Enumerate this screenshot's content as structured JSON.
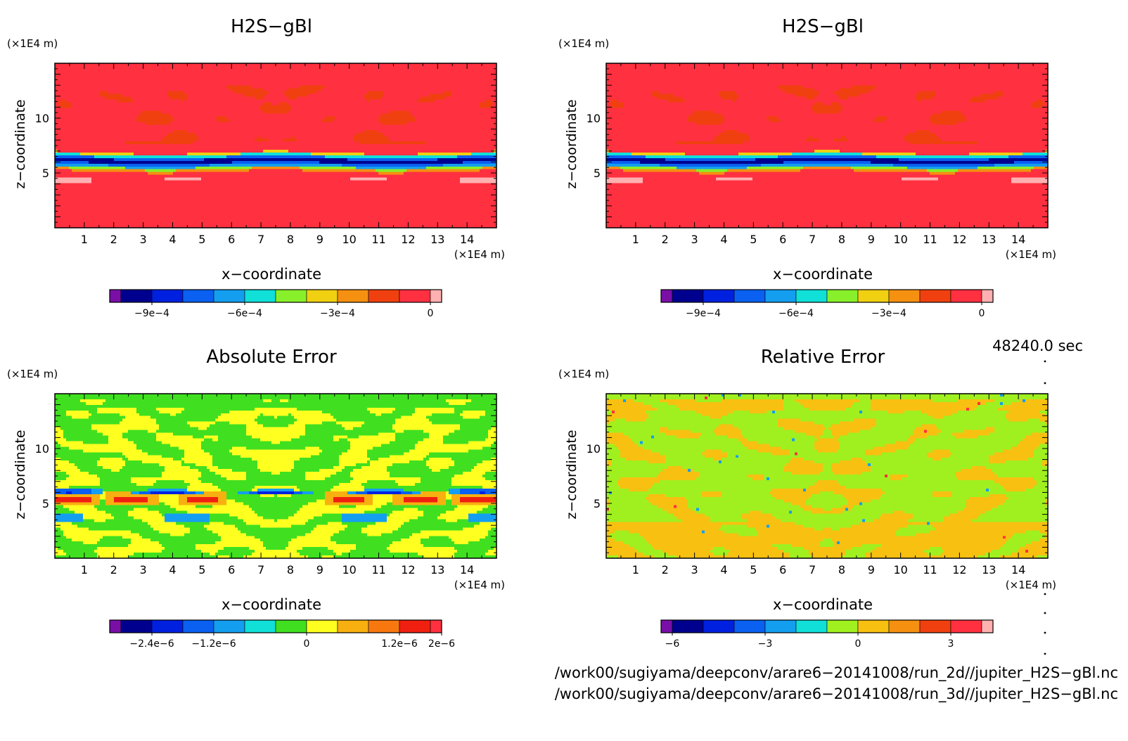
{
  "panels": [
    {
      "id": "h2s-gbl-2d",
      "title": "H2S−gBl",
      "xlabel": "x−coordinate",
      "ylabel": "z−coordinate",
      "x_unit": "(×1E4 m)",
      "y_unit": "(×1E4 m)",
      "x_ticks": [
        1,
        2,
        3,
        4,
        5,
        6,
        7,
        8,
        9,
        10,
        11,
        12,
        13,
        14
      ],
      "y_ticks": [
        5,
        10
      ],
      "field": "h2s",
      "colorbar": {
        "colors": [
          "#7a0fa8",
          "#00008f",
          "#0020e0",
          "#0a60f0",
          "#149ef0",
          "#10e0d8",
          "#88f02a",
          "#f0d010",
          "#f59010",
          "#f04010",
          "#ff3040",
          "#ffb0b0"
        ],
        "tick_labels": [
          "−9e−4",
          "−6e−4",
          "−3e−4",
          "0"
        ],
        "tick_indices": [
          1,
          4,
          7,
          10
        ]
      }
    },
    {
      "id": "h2s-gbl-3d",
      "title": "H2S−gBl",
      "xlabel": "x−coordinate",
      "ylabel": "z−coordinate",
      "x_unit": "(×1E4 m)",
      "y_unit": "(×1E4 m)",
      "x_ticks": [
        1,
        2,
        3,
        4,
        5,
        6,
        7,
        8,
        9,
        10,
        11,
        12,
        13,
        14
      ],
      "y_ticks": [
        5,
        10
      ],
      "field": "h2s",
      "colorbar": {
        "colors": [
          "#7a0fa8",
          "#00008f",
          "#0020e0",
          "#0a60f0",
          "#149ef0",
          "#10e0d8",
          "#88f02a",
          "#f0d010",
          "#f59010",
          "#f04010",
          "#ff3040",
          "#ffb0b0"
        ],
        "tick_labels": [
          "−9e−4",
          "−6e−4",
          "−3e−4",
          "0"
        ],
        "tick_indices": [
          1,
          4,
          7,
          10
        ]
      }
    },
    {
      "id": "absolute-error",
      "title": "Absolute Error",
      "xlabel": "x−coordinate",
      "ylabel": "z−coordinate",
      "x_unit": "(×1E4 m)",
      "y_unit": "(×1E4 m)",
      "x_ticks": [
        1,
        2,
        3,
        4,
        5,
        6,
        7,
        8,
        9,
        10,
        11,
        12,
        13,
        14
      ],
      "y_ticks": [
        5,
        10
      ],
      "field": "abs",
      "colorbar": {
        "colors": [
          "#7a0fa8",
          "#00008f",
          "#0020e0",
          "#0a60f0",
          "#149ef0",
          "#10e0d8",
          "#40e020",
          "#ffff20",
          "#f8b010",
          "#f87810",
          "#f02010",
          "#ff3040"
        ],
        "tick_labels": [
          "−2.4e−6",
          "−1.2e−6",
          "0",
          "1.2e−6",
          "2e−6"
        ],
        "tick_indices": [
          1,
          3,
          6,
          9,
          11
        ]
      }
    },
    {
      "id": "relative-error",
      "title": "Relative Error",
      "xlabel": "x−coordinate",
      "ylabel": "z−coordinate",
      "x_unit": "(×1E4 m)",
      "y_unit": "(×1E4 m)",
      "x_ticks": [
        1,
        2,
        3,
        4,
        5,
        6,
        7,
        8,
        9,
        10,
        11,
        12,
        13,
        14
      ],
      "y_ticks": [
        5,
        10
      ],
      "field": "rel",
      "colorbar": {
        "colors": [
          "#7a0fa8",
          "#00008f",
          "#0020e0",
          "#0a60f0",
          "#149ef0",
          "#10e0d8",
          "#a0f020",
          "#f8c010",
          "#f59010",
          "#f04010",
          "#ff3040",
          "#ffb0b0"
        ],
        "tick_labels": [
          "−6",
          "−3",
          "0",
          "3"
        ],
        "tick_indices": [
          0,
          3,
          6,
          9
        ]
      }
    }
  ],
  "time_label": "48240.0 sec",
  "file_paths": [
    "/work00/sugiyama/deepconv/arare6−20141008/run_2d//jupiter_H2S−gBl.nc",
    "/work00/sugiyama/deepconv/arare6−20141008/run_3d//jupiter_H2S−gBl.nc"
  ],
  "chart_data": [
    {
      "type": "heatmap",
      "title": "H2S−gBl",
      "xlabel": "x−coordinate",
      "ylabel": "z−coordinate",
      "xlim": [
        0,
        15
      ],
      "ylim": [
        0,
        15
      ],
      "colorbar_ticks": [
        "−9e−4",
        "−6e−4",
        "−3e−4",
        "0"
      ]
    },
    {
      "type": "heatmap",
      "title": "H2S−gBl",
      "xlabel": "x−coordinate",
      "ylabel": "z−coordinate",
      "xlim": [
        0,
        15
      ],
      "ylim": [
        0,
        15
      ],
      "colorbar_ticks": [
        "−9e−4",
        "−6e−4",
        "−3e−4",
        "0"
      ]
    },
    {
      "type": "heatmap",
      "title": "Absolute Error",
      "xlabel": "x−coordinate",
      "ylabel": "z−coordinate",
      "xlim": [
        0,
        15
      ],
      "ylim": [
        0,
        15
      ],
      "colorbar_ticks": [
        "−2.4e−6",
        "−1.2e−6",
        "0",
        "1.2e−6",
        "2e−6"
      ]
    },
    {
      "type": "heatmap",
      "title": "Relative Error",
      "xlabel": "x−coordinate",
      "ylabel": "z−coordinate",
      "xlim": [
        0,
        15
      ],
      "ylim": [
        0,
        15
      ],
      "colorbar_ticks": [
        "−6",
        "−3",
        "0",
        "3"
      ]
    }
  ]
}
